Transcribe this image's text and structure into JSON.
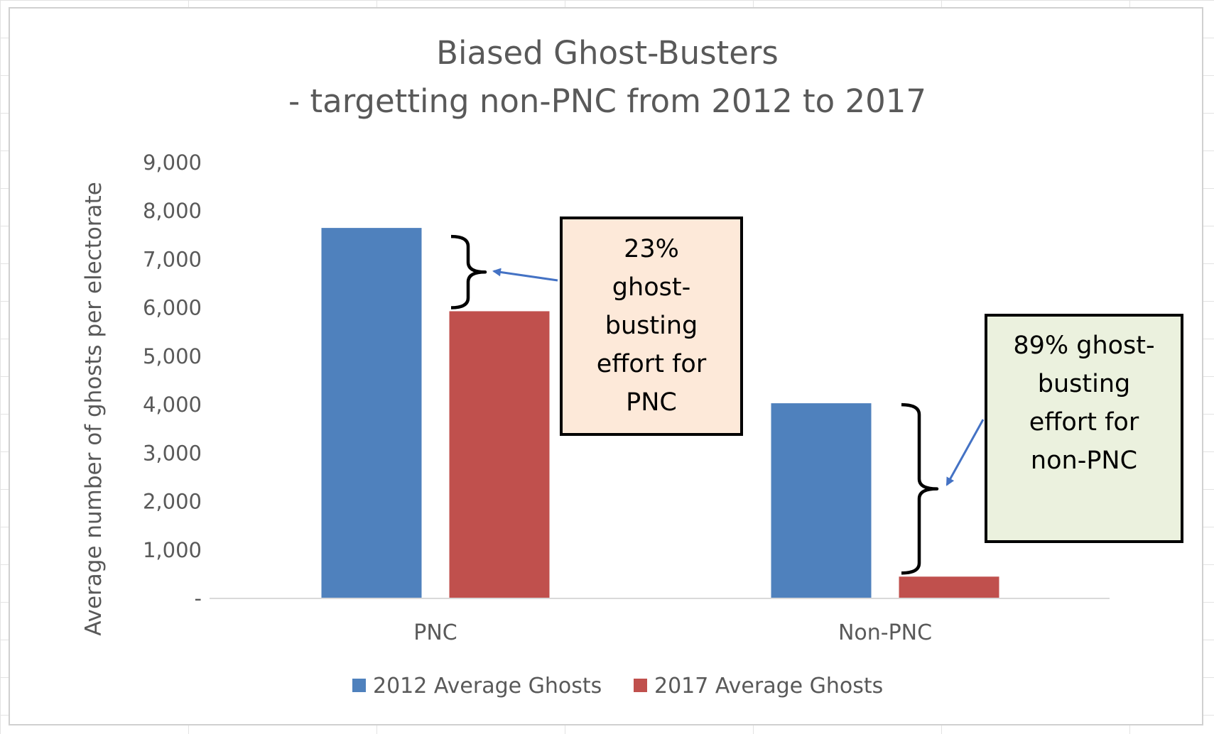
{
  "chart_data": {
    "type": "bar",
    "title": [
      "Biased Ghost-Busters",
      "- targetting non-PNC from 2012 to 2017"
    ],
    "ylabel": "Average number of ghosts per electorate",
    "xlabel": "",
    "ylim": [
      0,
      9000
    ],
    "yticks": [
      0,
      1000,
      2000,
      3000,
      4000,
      5000,
      6000,
      7000,
      8000,
      9000
    ],
    "ytick_labels": [
      "-",
      "1,000",
      "2,000",
      "3,000",
      "4,000",
      "5,000",
      "6,000",
      "7,000",
      "8,000",
      "9,000"
    ],
    "categories": [
      "PNC",
      "Non-PNC"
    ],
    "series": [
      {
        "name": "2012 Average Ghosts",
        "values": [
          7650,
          4030
        ],
        "color": "#4f81bd"
      },
      {
        "name": "2017 Average Ghosts",
        "values": [
          5930,
          450
        ],
        "color": "#c0504d"
      }
    ],
    "grid": false,
    "legend_position": "bottom",
    "annotations": [
      {
        "lines": [
          "23%",
          "ghost-",
          "busting",
          "effort for",
          "PNC"
        ],
        "fill": "#fde9d9",
        "category": "PNC"
      },
      {
        "lines": [
          "89% ghost-",
          "busting",
          "effort for",
          "non-PNC"
        ],
        "fill": "#ebf1de",
        "category": "Non-PNC"
      }
    ]
  }
}
